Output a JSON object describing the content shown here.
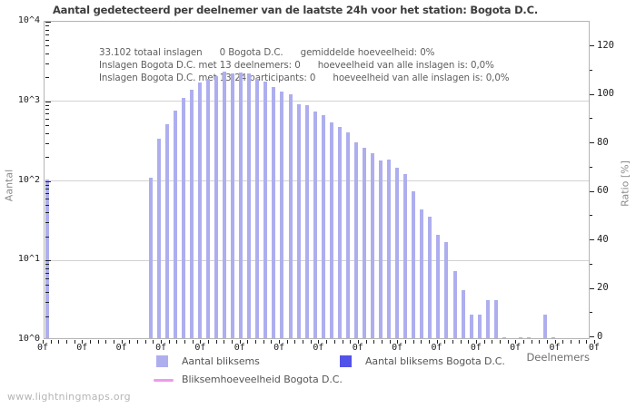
{
  "title": "Aantal gedetecteerd per deelnemer van de laatste 24h voor het station: Bogota D.C.",
  "annotations": {
    "line1": "33.102 totaal inslagen      0 Bogota D.C.      gemiddelde hoeveelheid: 0%",
    "line2": "Inslagen Bogota D.C. met 13 deelnemers: 0      hoeveelheid van alle inslagen is: 0,0%",
    "line3": "Inslagen Bogota D.C. met 13-24 participants: 0      hoeveelheid van alle inslagen is: 0,0%"
  },
  "watermark": "www.lightningmaps.org",
  "axes": {
    "left_title": "Aantal",
    "right_title": "Ratio [%]",
    "x_title": "Deelnemers",
    "left_ticks": [
      "10^4",
      "10^3",
      "10^2",
      "10^1",
      "10^0"
    ],
    "right_tick_values": [
      120,
      100,
      80,
      60,
      40,
      20,
      0
    ],
    "x_tick_label": "0f"
  },
  "legend": [
    {
      "label": "Aantal bliksems",
      "color": "#aeaeef",
      "type": "square"
    },
    {
      "label": "Aantal bliksems Bogota D.C.",
      "color": "#5252e8",
      "type": "square"
    },
    {
      "label": "Bliksemhoeveelheid Bogota D.C.",
      "color": "#ee99ee",
      "type": "line"
    }
  ],
  "chart_data": {
    "type": "bar",
    "title": "Aantal gedetecteerd per deelnemer van de laatste 24h voor het station: Bogota D.C.",
    "xlabel": "Deelnemers",
    "ylabel_left": "Aantal",
    "ylabel_right": "Ratio [%]",
    "y_scale_left": "log",
    "ylim_left": [
      1,
      10000
    ],
    "ylim_right": [
      0,
      130
    ],
    "grid": true,
    "legend_position": "bottom",
    "series": [
      {
        "name": "Aantal bliksems",
        "color": "#aeaeef",
        "x_meaning": "aantal deelnemers",
        "points": [
          [
            0,
            100
          ],
          [
            13,
            105
          ],
          [
            14,
            320
          ],
          [
            15,
            490
          ],
          [
            16,
            730
          ],
          [
            17,
            1050
          ],
          [
            18,
            1310
          ],
          [
            19,
            1620
          ],
          [
            20,
            1810
          ],
          [
            21,
            1980
          ],
          [
            22,
            2250
          ],
          [
            23,
            2150
          ],
          [
            24,
            2210
          ],
          [
            25,
            2100
          ],
          [
            26,
            1820
          ],
          [
            27,
            1660
          ],
          [
            28,
            1450
          ],
          [
            29,
            1250
          ],
          [
            30,
            1170
          ],
          [
            31,
            880
          ],
          [
            32,
            850
          ],
          [
            33,
            710
          ],
          [
            34,
            635
          ],
          [
            35,
            510
          ],
          [
            36,
            455
          ],
          [
            37,
            385
          ],
          [
            38,
            290
          ],
          [
            39,
            245
          ],
          [
            40,
            210
          ],
          [
            41,
            170
          ],
          [
            42,
            175
          ],
          [
            43,
            140
          ],
          [
            44,
            115
          ],
          [
            45,
            70
          ],
          [
            46,
            42
          ],
          [
            47,
            34
          ],
          [
            48,
            20
          ],
          [
            49,
            16
          ],
          [
            50,
            7
          ],
          [
            51,
            4
          ],
          [
            52,
            2
          ],
          [
            53,
            2
          ],
          [
            54,
            3
          ],
          [
            55,
            3
          ],
          [
            56,
            1
          ],
          [
            58,
            1
          ],
          [
            59,
            1
          ],
          [
            61,
            2
          ],
          [
            62,
            1
          ]
        ]
      },
      {
        "name": "Aantal bliksems Bogota D.C.",
        "color": "#5252e8",
        "points": []
      },
      {
        "name": "Bliksemhoeveelheid Bogota D.C.",
        "color": "#ee99ee",
        "type": "line",
        "points": []
      }
    ]
  }
}
